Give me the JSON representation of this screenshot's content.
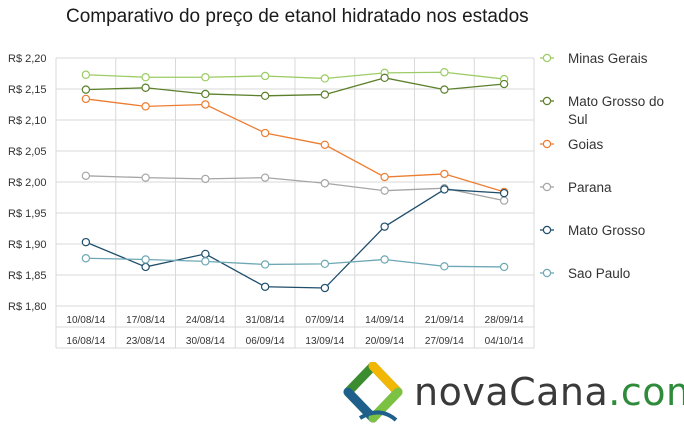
{
  "page": {
    "title": "Comparativo do preço de etanol hidratado nos estados"
  },
  "logo": {
    "word": "novaCana",
    "tld": ".com"
  },
  "chart_data": {
    "type": "line",
    "title": "Comparativo do preço de etanol hidratado nos estados",
    "xlabel": "",
    "ylabel": "",
    "ylim": [
      1.8,
      2.2
    ],
    "ytick_step": 0.05,
    "ytick_prefix": "R$ ",
    "grid": true,
    "legend_position": "right",
    "categories": [
      [
        "10/08/14",
        "16/08/14"
      ],
      [
        "17/08/14",
        "23/08/14"
      ],
      [
        "24/08/14",
        "30/08/14"
      ],
      [
        "31/08/14",
        "06/09/14"
      ],
      [
        "07/09/14",
        "13/09/14"
      ],
      [
        "14/09/14",
        "20/09/14"
      ],
      [
        "21/09/14",
        "27/09/14"
      ],
      [
        "28/09/14",
        "04/10/14"
      ]
    ],
    "series": [
      {
        "name": "Minas Gerais",
        "color": "#9ccc65",
        "values": [
          2.173,
          2.169,
          2.169,
          2.171,
          2.167,
          2.176,
          2.177,
          2.166
        ]
      },
      {
        "name": "Mato Grosso do Sul",
        "color": "#5b7f2a",
        "values": [
          2.149,
          2.152,
          2.142,
          2.139,
          2.141,
          2.168,
          2.149,
          2.158
        ]
      },
      {
        "name": "Goias",
        "color": "#ed7d31",
        "values": [
          2.134,
          2.122,
          2.125,
          2.079,
          2.06,
          2.008,
          2.013,
          1.984
        ]
      },
      {
        "name": "Parana",
        "color": "#a5a5a5",
        "values": [
          2.01,
          2.007,
          2.005,
          2.007,
          1.998,
          1.986,
          1.99,
          1.97
        ]
      },
      {
        "name": "Mato Grosso",
        "color": "#1f4e6b",
        "values": [
          1.903,
          1.863,
          1.884,
          1.831,
          1.829,
          1.928,
          1.988,
          1.982
        ]
      },
      {
        "name": "Sao Paulo",
        "color": "#6fa8b5",
        "values": [
          1.877,
          1.875,
          1.872,
          1.867,
          1.868,
          1.875,
          1.864,
          1.863
        ]
      }
    ]
  }
}
